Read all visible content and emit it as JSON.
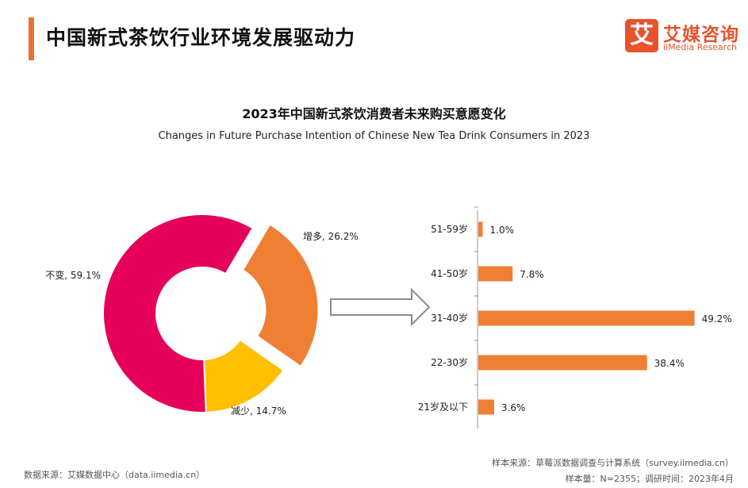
{
  "header": {
    "title": "中国新式茶饮行业环境发展驱动力"
  },
  "logo": {
    "mark": "艾",
    "cn": "艾媒咨询",
    "en": "iiMedia Research"
  },
  "chart_data": [
    {
      "type": "pie",
      "variant": "donut",
      "title": "2023年中国新式茶饮消费者未来购买意愿变化",
      "subtitle": "Changes in Future Purchase Intention of Chinese New Tea Drink Consumers in 2023",
      "slices": [
        {
          "label": "不变",
          "value": 59.1,
          "display": "不变, 59.1%",
          "color": "#e5005a"
        },
        {
          "label": "增多",
          "value": 26.2,
          "display": "增多, 26.2%",
          "color": "#ee7f33",
          "exploded": true
        },
        {
          "label": "减少",
          "value": 14.7,
          "display": "减少, 14.7%",
          "color": "#ffc000"
        }
      ],
      "unit": "%"
    },
    {
      "type": "bar",
      "orientation": "horizontal",
      "categories": [
        "51-59岁",
        "41-50岁",
        "31-40岁",
        "22-30岁",
        "21岁及以下"
      ],
      "values": [
        1.0,
        7.8,
        49.2,
        38.4,
        3.6
      ],
      "value_labels": [
        "1.0%",
        "7.8%",
        "49.2%",
        "38.4%",
        "3.6%"
      ],
      "color": "#ee7f33",
      "xlim": [
        0,
        50
      ],
      "grid": false
    }
  ],
  "footer": {
    "source_left": "数据来源：艾媒数据中心（data.iimedia.cn）",
    "source_right": "样本来源：草莓派数据调查与计算系统（survey.iimedia.cn）",
    "sample_info": "样本量：N=2355；调研时间：2023年4月"
  }
}
